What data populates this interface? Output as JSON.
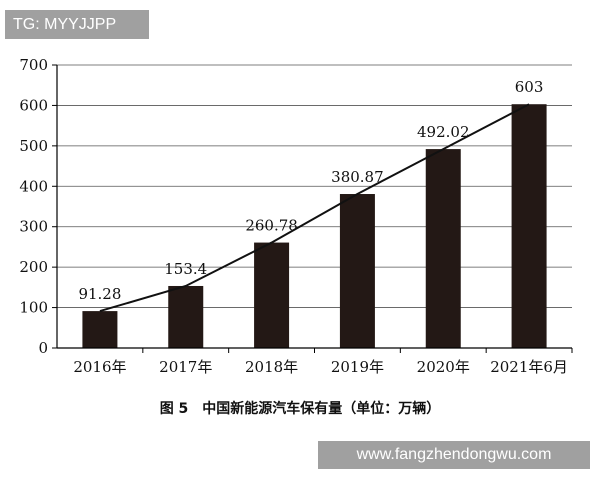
{
  "watermarks": {
    "top": "TG: MYYJJPP",
    "bottom": "www.fangzhendongwu.com"
  },
  "caption": "图 5　中国新能源汽车保有量（单位：万辆）",
  "colors": {
    "bar": "#231815",
    "line": "#111111",
    "grid": "#555555"
  },
  "chart_data": {
    "type": "bar",
    "categories": [
      "2016年",
      "2017年",
      "2018年",
      "2019年",
      "2020年",
      "2021年6月"
    ],
    "values": [
      91.28,
      153.4,
      260.78,
      380.87,
      492.02,
      603
    ],
    "value_labels": [
      "91.28",
      "153.4",
      "260.78",
      "380.87",
      "492.02",
      "603"
    ],
    "overlay_line": true,
    "yticks": [
      0,
      100,
      200,
      300,
      400,
      500,
      600,
      700
    ],
    "ylim": [
      0,
      700
    ],
    "grid": true
  }
}
